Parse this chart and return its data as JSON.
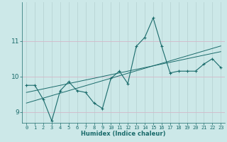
{
  "xlabel": "Humidex (Indice chaleur)",
  "bg_color": "#cce8e8",
  "grid_color": "#b8d4d4",
  "line_color": "#1a6b6b",
  "x_data": [
    0,
    1,
    2,
    3,
    4,
    5,
    6,
    7,
    8,
    9,
    10,
    11,
    12,
    13,
    14,
    15,
    16,
    17,
    18,
    19,
    20,
    21,
    22,
    23
  ],
  "y_main": [
    9.75,
    9.75,
    9.35,
    8.75,
    9.6,
    9.85,
    9.6,
    9.55,
    9.25,
    9.1,
    9.95,
    10.15,
    9.8,
    10.85,
    11.1,
    11.65,
    10.85,
    10.1,
    10.15,
    10.15,
    10.15,
    10.35,
    10.5,
    10.25
  ],
  "y_trend1": [
    9.55,
    9.6,
    9.65,
    9.7,
    9.75,
    9.8,
    9.85,
    9.9,
    9.95,
    10.0,
    10.05,
    10.1,
    10.15,
    10.2,
    10.25,
    10.3,
    10.35,
    10.4,
    10.45,
    10.5,
    10.55,
    10.6,
    10.65,
    10.7
  ],
  "y_trend2": [
    9.25,
    9.32,
    9.39,
    9.46,
    9.53,
    9.6,
    9.67,
    9.74,
    9.81,
    9.88,
    9.95,
    10.02,
    10.09,
    10.16,
    10.23,
    10.3,
    10.37,
    10.44,
    10.51,
    10.58,
    10.65,
    10.72,
    10.79,
    10.86
  ],
  "ylim": [
    8.7,
    12.1
  ],
  "yticks": [
    9,
    10,
    11
  ],
  "xlim": [
    -0.5,
    23.5
  ],
  "xticks": [
    0,
    1,
    2,
    3,
    4,
    5,
    6,
    7,
    8,
    9,
    10,
    11,
    12,
    13,
    14,
    15,
    16,
    17,
    18,
    19,
    20,
    21,
    22,
    23
  ],
  "xlabel_fontsize": 6.0,
  "ytick_fontsize": 6.5,
  "xtick_fontsize": 5.0
}
